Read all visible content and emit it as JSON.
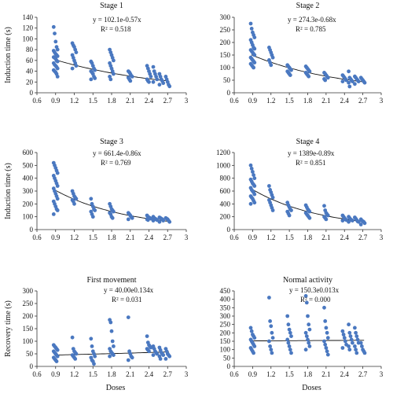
{
  "chart_data": [
    {
      "type": "scatter",
      "title": "Stage 1",
      "xlabel": "",
      "ylabel": "Induction time (s)",
      "xlim": [
        0.6,
        3
      ],
      "ylim": [
        0,
        140
      ],
      "xticks": [
        0.6,
        0.9,
        1.2,
        1.5,
        1.8,
        2.1,
        2.4,
        2.7,
        3
      ],
      "yticks": [
        0,
        20,
        40,
        60,
        80,
        100,
        120,
        140
      ],
      "equation": "y = 102.1e-0.57x",
      "r2": "R² = 0.518",
      "fit": {
        "a": 102.1,
        "b": -0.57
      },
      "points": [
        {
          "x": 0.9,
          "ys": [
            122,
            110,
            95,
            85,
            80,
            78,
            75,
            72,
            70,
            68,
            66,
            65,
            63,
            60,
            58,
            55,
            52,
            50,
            48,
            45,
            42,
            40,
            38,
            35,
            30
          ]
        },
        {
          "x": 1.2,
          "ys": [
            92,
            88,
            85,
            80,
            75,
            70,
            65,
            60,
            55,
            50,
            45
          ]
        },
        {
          "x": 1.5,
          "ys": [
            58,
            55,
            50,
            45,
            42,
            40,
            38,
            35,
            30,
            27,
            25
          ]
        },
        {
          "x": 1.8,
          "ys": [
            80,
            75,
            70,
            65,
            60,
            55,
            50,
            45,
            40,
            35,
            30,
            25
          ]
        },
        {
          "x": 2.1,
          "ys": [
            40,
            38,
            35,
            32,
            30,
            28,
            25,
            22
          ]
        },
        {
          "x": 2.4,
          "ys": [
            50,
            45,
            40,
            35,
            30,
            25,
            22,
            20
          ]
        },
        {
          "x": 2.5,
          "ys": [
            48,
            40,
            35,
            30,
            25,
            20
          ]
        },
        {
          "x": 2.6,
          "ys": [
            35,
            30,
            25,
            22,
            18,
            15
          ]
        },
        {
          "x": 2.7,
          "ys": [
            30,
            25,
            20,
            15,
            12
          ]
        }
      ]
    },
    {
      "type": "scatter",
      "title": "Stage 2",
      "xlabel": "",
      "ylabel": "",
      "xlim": [
        0.6,
        3
      ],
      "ylim": [
        0,
        300
      ],
      "xticks": [
        0.6,
        0.9,
        1.2,
        1.5,
        1.8,
        2.1,
        2.4,
        2.7,
        3
      ],
      "yticks": [
        0,
        50,
        100,
        150,
        200,
        250,
        300
      ],
      "equation": "y = 274.3e-0.68x",
      "r2": "R² = 0.785",
      "fit": {
        "a": 274.3,
        "b": -0.68
      },
      "points": [
        {
          "x": 0.9,
          "ys": [
            275,
            255,
            240,
            230,
            220,
            210,
            200,
            190,
            180,
            175,
            170,
            165,
            160,
            155,
            150,
            140,
            135,
            130,
            125,
            120,
            115,
            110,
            105,
            100
          ]
        },
        {
          "x": 1.2,
          "ys": [
            180,
            170,
            160,
            150,
            140,
            130,
            120,
            110
          ]
        },
        {
          "x": 1.5,
          "ys": [
            110,
            105,
            100,
            95,
            90,
            85,
            80,
            75,
            70
          ]
        },
        {
          "x": 1.8,
          "ys": [
            105,
            100,
            95,
            90,
            85,
            80,
            75,
            70,
            65
          ]
        },
        {
          "x": 2.1,
          "ys": [
            80,
            75,
            70,
            65,
            60,
            55,
            50
          ]
        },
        {
          "x": 2.4,
          "ys": [
            70,
            65,
            60,
            55,
            50,
            45
          ]
        },
        {
          "x": 2.5,
          "ys": [
            85,
            60,
            55,
            50,
            45,
            40,
            25
          ]
        },
        {
          "x": 2.6,
          "ys": [
            65,
            60,
            55,
            50,
            45,
            35
          ]
        },
        {
          "x": 2.7,
          "ys": [
            60,
            55,
            50,
            45,
            40
          ]
        }
      ]
    },
    {
      "type": "scatter",
      "title": "Stage 3",
      "xlabel": "",
      "ylabel": "Induction time (s)",
      "xlim": [
        0.6,
        3
      ],
      "ylim": [
        0,
        600
      ],
      "xticks": [
        0.6,
        0.9,
        1.2,
        1.5,
        1.8,
        2.1,
        2.4,
        2.7,
        3
      ],
      "yticks": [
        0,
        100,
        200,
        300,
        400,
        500,
        600
      ],
      "equation": "y = 661.4e-0.86x",
      "r2": "R² = 0.769",
      "fit": {
        "a": 661.4,
        "b": -0.86
      },
      "points": [
        {
          "x": 0.9,
          "ys": [
            520,
            500,
            480,
            460,
            440,
            420,
            400,
            380,
            360,
            340,
            320,
            300,
            280,
            260,
            240,
            220,
            200,
            180,
            160,
            150,
            120
          ]
        },
        {
          "x": 1.2,
          "ys": [
            300,
            280,
            260,
            250,
            240,
            230,
            220,
            200
          ]
        },
        {
          "x": 1.5,
          "ys": [
            240,
            200,
            180,
            160,
            150,
            140,
            120,
            100
          ]
        },
        {
          "x": 1.8,
          "ys": [
            200,
            180,
            160,
            150,
            140,
            130,
            120,
            100,
            90
          ]
        },
        {
          "x": 2.1,
          "ys": [
            130,
            120,
            110,
            100,
            90,
            80
          ]
        },
        {
          "x": 2.4,
          "ys": [
            110,
            100,
            95,
            90,
            85,
            80,
            75
          ]
        },
        {
          "x": 2.5,
          "ys": [
            100,
            90,
            85,
            80,
            75,
            70
          ]
        },
        {
          "x": 2.6,
          "ys": [
            95,
            90,
            85,
            80,
            70,
            60
          ]
        },
        {
          "x": 2.7,
          "ys": [
            90,
            85,
            80,
            70,
            60
          ]
        }
      ]
    },
    {
      "type": "scatter",
      "title": "Stage 4",
      "xlabel": "",
      "ylabel": "",
      "xlim": [
        0.6,
        3
      ],
      "ylim": [
        0,
        1200
      ],
      "xticks": [
        0.6,
        0.9,
        1.2,
        1.5,
        1.8,
        2.1,
        2.4,
        2.7,
        3
      ],
      "yticks": [
        0,
        200,
        400,
        600,
        800,
        1000,
        1200
      ],
      "equation": "y = 1389e-0.89x",
      "r2": "R² = 0.851",
      "fit": {
        "a": 1389,
        "b": -0.89
      },
      "points": [
        {
          "x": 0.9,
          "ys": [
            1000,
            950,
            900,
            850,
            800,
            780,
            750,
            720,
            700,
            680,
            650,
            620,
            600,
            580,
            550,
            520,
            500,
            480,
            450,
            420,
            400
          ]
        },
        {
          "x": 1.2,
          "ys": [
            680,
            620,
            580,
            540,
            500,
            460,
            420,
            380,
            340,
            300
          ]
        },
        {
          "x": 1.5,
          "ys": [
            420,
            380,
            350,
            320,
            300,
            280,
            250,
            220
          ]
        },
        {
          "x": 1.8,
          "ys": [
            380,
            350,
            320,
            300,
            280,
            260,
            240,
            220,
            200,
            180
          ]
        },
        {
          "x": 2.1,
          "ys": [
            370,
            300,
            260,
            240,
            220,
            200,
            180,
            160
          ]
        },
        {
          "x": 2.4,
          "ys": [
            220,
            200,
            180,
            160,
            150,
            140
          ]
        },
        {
          "x": 2.5,
          "ys": [
            200,
            180,
            160,
            150,
            140,
            120
          ]
        },
        {
          "x": 2.6,
          "ys": [
            190,
            170,
            150,
            130,
            120
          ]
        },
        {
          "x": 2.7,
          "ys": [
            160,
            140,
            130,
            120,
            100,
            80
          ]
        }
      ]
    },
    {
      "type": "scatter",
      "title": "First movement",
      "xlabel": "Doses",
      "ylabel": "Recovery time (s)",
      "xlim": [
        0.6,
        3
      ],
      "ylim": [
        0,
        300
      ],
      "xticks": [
        0.6,
        0.9,
        1.2,
        1.5,
        1.8,
        2.1,
        2.4,
        2.7,
        3
      ],
      "yticks": [
        0,
        50,
        100,
        150,
        200,
        250,
        300
      ],
      "equation": "y = 40.00e0.134x",
      "r2": "R² = 0.031",
      "fit": {
        "a": 40.0,
        "b": 0.134
      },
      "points": [
        {
          "x": 0.9,
          "ys": [
            85,
            80,
            75,
            70,
            65,
            60,
            55,
            50,
            45,
            40,
            35,
            30,
            25,
            20
          ]
        },
        {
          "x": 1.2,
          "ys": [
            115,
            70,
            60,
            55,
            50,
            45,
            40,
            35,
            30
          ]
        },
        {
          "x": 1.5,
          "ys": [
            110,
            80,
            60,
            50,
            40,
            35,
            25,
            20,
            10
          ]
        },
        {
          "x": 1.8,
          "ys": [
            185,
            175,
            140,
            100,
            80,
            70,
            60,
            55,
            50,
            45,
            40
          ]
        },
        {
          "x": 2.1,
          "ys": [
            195,
            60,
            50,
            40,
            35,
            25
          ]
        },
        {
          "x": 2.4,
          "ys": [
            120,
            95,
            85,
            80,
            75,
            70,
            65,
            60
          ]
        },
        {
          "x": 2.5,
          "ys": [
            80,
            70,
            60,
            55,
            50,
            45
          ]
        },
        {
          "x": 2.6,
          "ys": [
            75,
            65,
            55,
            50,
            45,
            40,
            30
          ]
        },
        {
          "x": 2.7,
          "ys": [
            70,
            60,
            50,
            45,
            40,
            30
          ]
        }
      ]
    },
    {
      "type": "scatter",
      "title": "Normal activity",
      "xlabel": "Doses",
      "ylabel": "",
      "xlim": [
        0.6,
        3
      ],
      "ylim": [
        0,
        450
      ],
      "xticks": [
        0.6,
        0.9,
        1.2,
        1.5,
        1.8,
        2.1,
        2.4,
        2.7,
        3
      ],
      "yticks": [
        0,
        50,
        100,
        150,
        200,
        250,
        300,
        350,
        400,
        450
      ],
      "equation": "y = 150.3e0.013x",
      "r2": "R² = 0.000",
      "fit": {
        "a": 150.3,
        "b": 0.013
      },
      "points": [
        {
          "x": 0.9,
          "ys": [
            230,
            210,
            190,
            180,
            170,
            160,
            150,
            140,
            130,
            120,
            110,
            100,
            90,
            80
          ]
        },
        {
          "x": 1.2,
          "ys": [
            410,
            270,
            240,
            200,
            170,
            150,
            120,
            100,
            80
          ]
        },
        {
          "x": 1.5,
          "ys": [
            300,
            250,
            220,
            200,
            180,
            160,
            140,
            120,
            100,
            80
          ]
        },
        {
          "x": 1.8,
          "ys": [
            420,
            380,
            300,
            250,
            220,
            200,
            180,
            160,
            140,
            120,
            100
          ]
        },
        {
          "x": 2.1,
          "ys": [
            350,
            270,
            230,
            200,
            170,
            150,
            130,
            110,
            90,
            70
          ]
        },
        {
          "x": 2.4,
          "ys": [
            210,
            190,
            170,
            150,
            130,
            110
          ]
        },
        {
          "x": 2.5,
          "ys": [
            250,
            200,
            180,
            160,
            140,
            120,
            100
          ]
        },
        {
          "x": 2.6,
          "ys": [
            230,
            200,
            180,
            160,
            140,
            120,
            100,
            80
          ]
        },
        {
          "x": 2.7,
          "ys": [
            140,
            120,
            100,
            90,
            80
          ]
        }
      ]
    }
  ],
  "colors": {
    "marker": "#4a78c0",
    "trend": "#111111",
    "axis": "#333333"
  }
}
